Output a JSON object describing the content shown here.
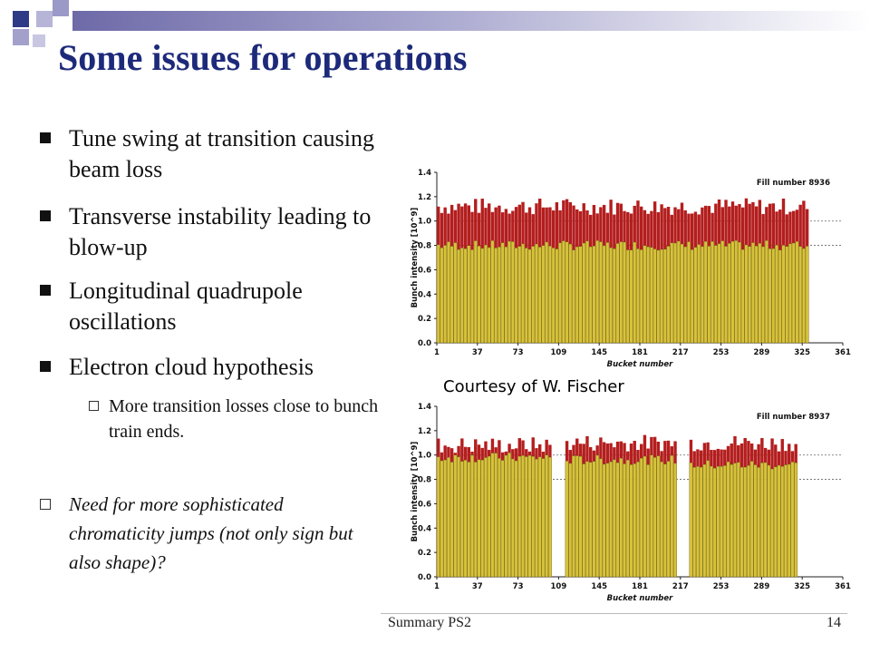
{
  "title": "Some issues for operations",
  "bullets": [
    {
      "text": "Tune swing at transition causing beam loss"
    },
    {
      "text": "Transverse instability leading to blow-up"
    },
    {
      "text": "Longitudinal quadrupole oscillations"
    },
    {
      "text": "Electron cloud hypothesis"
    }
  ],
  "sub_bullet": "More transition losses close to bunch train ends.",
  "note": "Need for more sophisticated chromaticity jumps (not only sign but also shape)?",
  "courtesy": "Courtesy of W. Fischer",
  "footer": {
    "center": "Summary PS2",
    "page": "14"
  },
  "colors": {
    "title": "#1d2a7a",
    "bar_upper": "#b41e1e",
    "bar_lower": "#d7c23a",
    "banner": "#6d6aa8"
  },
  "chart_data": [
    {
      "type": "bar",
      "title": "Fill number 8936",
      "xlabel": "Bucket number",
      "ylabel": "Bunch intensity [10^9]",
      "x_ticks": [
        "1",
        "37",
        "73",
        "109",
        "145",
        "181",
        "217",
        "253",
        "289",
        "325",
        "361"
      ],
      "y_ticks": [
        "0.0",
        "0.2",
        "0.4",
        "0.6",
        "0.8",
        "1.0",
        "1.2",
        "1.4"
      ],
      "ylim": [
        0,
        1.4
      ],
      "xlim": [
        1,
        361
      ],
      "groups": [
        {
          "start": 1,
          "count": 110,
          "upper_mean": 1.12,
          "lower_mean": 0.8
        }
      ],
      "reference_lines": [
        0.8,
        1.0
      ]
    },
    {
      "type": "bar",
      "title": "Fill number 8937",
      "xlabel": "Bucket number",
      "ylabel": "Bunch intensity [10^9]",
      "x_ticks": [
        "1",
        "37",
        "73",
        "109",
        "145",
        "181",
        "217",
        "253",
        "289",
        "325",
        "361"
      ],
      "y_ticks": [
        "0.0",
        "0.2",
        "0.4",
        "0.6",
        "0.8",
        "1.0",
        "1.2",
        "1.4"
      ],
      "ylim": [
        0,
        1.4
      ],
      "xlim": [
        1,
        361
      ],
      "groups": [
        {
          "start": 1,
          "count": 34,
          "upper_mean": 1.08,
          "lower_mean": 0.98
        },
        {
          "start": 115,
          "count": 33,
          "upper_mean": 1.1,
          "lower_mean": 0.96
        },
        {
          "start": 225,
          "count": 32,
          "upper_mean": 1.1,
          "lower_mean": 0.92
        }
      ],
      "reference_lines": [
        0.8,
        1.0
      ]
    }
  ]
}
